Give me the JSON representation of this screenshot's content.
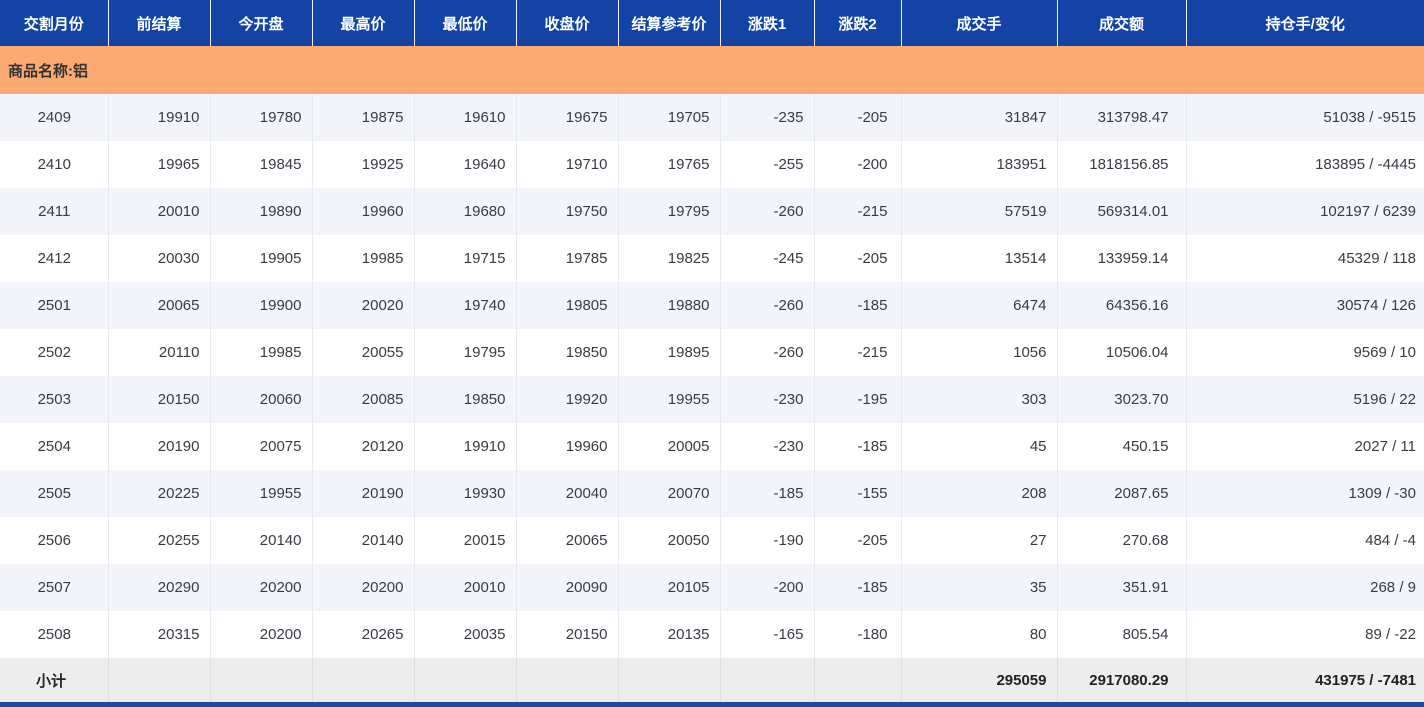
{
  "table": {
    "columns": [
      "交割月份",
      "前结算",
      "今开盘",
      "最高价",
      "最低价",
      "收盘价",
      "结算参考价",
      "涨跌1",
      "涨跌2",
      "成交手",
      "成交额",
      "持仓手/变化"
    ],
    "group_label": "商品名称:铝",
    "rows": [
      [
        "2409",
        "19910",
        "19780",
        "19875",
        "19610",
        "19675",
        "19705",
        "-235",
        "-205",
        "31847",
        "313798.47",
        "51038 / -9515"
      ],
      [
        "2410",
        "19965",
        "19845",
        "19925",
        "19640",
        "19710",
        "19765",
        "-255",
        "-200",
        "183951",
        "1818156.85",
        "183895 / -4445"
      ],
      [
        "2411",
        "20010",
        "19890",
        "19960",
        "19680",
        "19750",
        "19795",
        "-260",
        "-215",
        "57519",
        "569314.01",
        "102197 / 6239"
      ],
      [
        "2412",
        "20030",
        "19905",
        "19985",
        "19715",
        "19785",
        "19825",
        "-245",
        "-205",
        "13514",
        "133959.14",
        "45329 / 118"
      ],
      [
        "2501",
        "20065",
        "19900",
        "20020",
        "19740",
        "19805",
        "19880",
        "-260",
        "-185",
        "6474",
        "64356.16",
        "30574 / 126"
      ],
      [
        "2502",
        "20110",
        "19985",
        "20055",
        "19795",
        "19850",
        "19895",
        "-260",
        "-215",
        "1056",
        "10506.04",
        "9569 / 10"
      ],
      [
        "2503",
        "20150",
        "20060",
        "20085",
        "19850",
        "19920",
        "19955",
        "-230",
        "-195",
        "303",
        "3023.70",
        "5196 / 22"
      ],
      [
        "2504",
        "20190",
        "20075",
        "20120",
        "19910",
        "19960",
        "20005",
        "-230",
        "-185",
        "45",
        "450.15",
        "2027 / 11"
      ],
      [
        "2505",
        "20225",
        "19955",
        "20190",
        "19930",
        "20040",
        "20070",
        "-185",
        "-155",
        "208",
        "2087.65",
        "1309 / -30"
      ],
      [
        "2506",
        "20255",
        "20140",
        "20140",
        "20015",
        "20065",
        "20050",
        "-190",
        "-205",
        "27",
        "270.68",
        "484 / -4"
      ],
      [
        "2507",
        "20290",
        "20200",
        "20200",
        "20010",
        "20090",
        "20105",
        "-200",
        "-185",
        "35",
        "351.91",
        "268 / 9"
      ],
      [
        "2508",
        "20315",
        "20200",
        "20265",
        "20035",
        "20150",
        "20135",
        "-165",
        "-180",
        "80",
        "805.54",
        "89 / -22"
      ]
    ],
    "footer_cells": [
      "小计",
      "",
      "",
      "",
      "",
      "",
      "",
      "",
      "",
      "295059",
      "2917080.29",
      "431975 / -7481"
    ]
  },
  "colors": {
    "header_bg": "#1243A5",
    "header_text": "#FFFFFF",
    "group_bg": "#FCA972",
    "row_bg": "#FFFFFF",
    "row_alt_bg": "#F3F5FA",
    "footer_bg": "#EDEDED",
    "bottom_border": "#1B4A9E",
    "text": "#3A3A46"
  }
}
